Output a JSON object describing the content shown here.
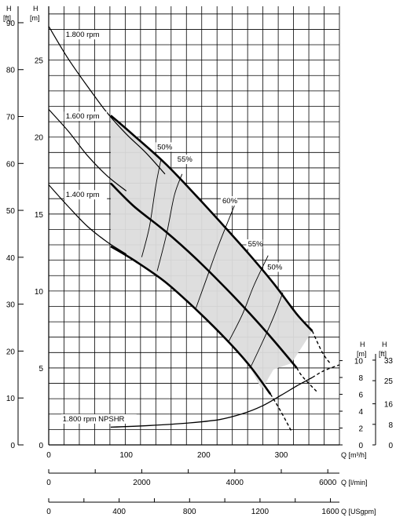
{
  "chart_data": {
    "type": "line",
    "grid": true,
    "units": {
      "h_ft_left": {
        "symbol": "H",
        "unit": "[ft]"
      },
      "h_m_left": {
        "symbol": "H",
        "unit": "[m]"
      },
      "npshr_m": {
        "symbol": "H",
        "unit": "[m]"
      },
      "npshr_ft": {
        "symbol": "H",
        "unit": "[ft]"
      },
      "q_m3h": "Q [m³/h]",
      "q_lmin": "Q [l/min]",
      "q_usgpm": "Q [USgpm]"
    },
    "ticks": {
      "h_ft_left": [
        "0",
        "10",
        "20",
        "30",
        "40",
        "50",
        "60",
        "70",
        "80",
        "90"
      ],
      "h_m_left": [
        "0",
        "5",
        "10",
        "15",
        "20",
        "25"
      ],
      "npshr_m": [
        "0",
        "2",
        "4",
        "6",
        "8",
        "10"
      ],
      "npshr_ft": [
        "0",
        "8",
        "16",
        "25",
        "33"
      ],
      "q_m3h": [
        "0",
        "100",
        "200",
        "300"
      ],
      "q_lmin": [
        "0",
        "2000",
        "4000",
        "6000"
      ],
      "q_usgpm": [
        "0",
        "400",
        "800",
        "1200",
        "1600"
      ]
    },
    "xlim": [
      0,
      375
    ],
    "ylim_m": [
      0,
      28.5
    ],
    "npshr_ylim_m": [
      0,
      10.8
    ],
    "series": [
      {
        "name": "1.800 rpm",
        "style": "thin",
        "points": [
          [
            0,
            27.2
          ],
          [
            25,
            25.1
          ],
          [
            50,
            23.3
          ],
          [
            75,
            21.6
          ],
          [
            100,
            20.2
          ],
          [
            125,
            19.0
          ],
          [
            150,
            17.6
          ]
        ]
      },
      {
        "name": "1.800 rpm",
        "style": "thick",
        "points": [
          [
            80,
            21.4
          ],
          [
            110,
            20.1
          ],
          [
            150,
            18.3
          ],
          [
            190,
            16.2
          ],
          [
            230,
            14.0
          ],
          [
            260,
            12.3
          ],
          [
            290,
            10.5
          ],
          [
            320,
            8.5
          ],
          [
            340,
            7.4
          ]
        ]
      },
      {
        "name": "1.800 rpm",
        "style": "dashed",
        "points": [
          [
            340,
            7.4
          ],
          [
            353,
            6.0
          ],
          [
            363,
            5.3
          ]
        ]
      },
      {
        "name": "1.600 rpm",
        "style": "thin",
        "points": [
          [
            0,
            21.8
          ],
          [
            25,
            20.4
          ],
          [
            50,
            18.8
          ],
          [
            75,
            17.5
          ],
          [
            100,
            16.5
          ]
        ]
      },
      {
        "name": "1.600 rpm",
        "style": "thick",
        "points": [
          [
            80,
            17.0
          ],
          [
            110,
            15.5
          ],
          [
            150,
            13.9
          ],
          [
            190,
            12.1
          ],
          [
            230,
            10.1
          ],
          [
            260,
            8.5
          ],
          [
            290,
            6.8
          ],
          [
            320,
            5.0
          ]
        ]
      },
      {
        "name": "1.600 rpm",
        "style": "dashed",
        "points": [
          [
            320,
            5.0
          ],
          [
            328,
            4.4
          ],
          [
            347,
            3.4
          ]
        ]
      },
      {
        "name": "1.400 rpm",
        "style": "thin",
        "points": [
          [
            0,
            16.9
          ],
          [
            25,
            15.5
          ],
          [
            50,
            14.2
          ],
          [
            75,
            13.2
          ],
          [
            100,
            12.4
          ]
        ]
      },
      {
        "name": "1.400 rpm",
        "style": "thick",
        "points": [
          [
            80,
            12.9
          ],
          [
            110,
            12.0
          ],
          [
            150,
            10.6
          ],
          [
            190,
            8.8
          ],
          [
            230,
            6.8
          ],
          [
            260,
            5.1
          ],
          [
            286,
            3.3
          ]
        ]
      },
      {
        "name": "1.400 rpm",
        "style": "dashed",
        "points": [
          [
            286,
            3.3
          ],
          [
            298,
            2.3
          ],
          [
            313,
            0.9
          ]
        ]
      }
    ],
    "npshr": {
      "label": "1.800 rpm NPSHR",
      "points": [
        [
          80,
          2.1
        ],
        [
          130,
          2.3
        ],
        [
          180,
          2.6
        ],
        [
          220,
          3.0
        ],
        [
          250,
          3.7
        ],
        [
          275,
          4.6
        ],
        [
          300,
          5.9
        ],
        [
          320,
          7.0
        ],
        [
          340,
          8.0
        ]
      ],
      "dashed_points": [
        [
          340,
          8.0
        ],
        [
          355,
          8.8
        ],
        [
          375,
          9.5
        ]
      ]
    },
    "efficiency_lines": [
      {
        "label": "50%",
        "points": [
          [
            120,
            12.2
          ],
          [
            130,
            14.2
          ],
          [
            138,
            16.8
          ],
          [
            145,
            18.6
          ]
        ]
      },
      {
        "label": "55%",
        "points": [
          [
            140,
            11.3
          ],
          [
            152,
            13.7
          ],
          [
            162,
            16.2
          ],
          [
            172,
            17.6
          ]
        ]
      },
      {
        "label": "60%",
        "points": [
          [
            190,
            8.9
          ],
          [
            205,
            11.0
          ],
          [
            220,
            13.1
          ],
          [
            240,
            15.6
          ]
        ]
      },
      {
        "label": "55%",
        "points": [
          [
            232,
            6.7
          ],
          [
            250,
            8.5
          ],
          [
            265,
            10.4
          ],
          [
            283,
            12.3
          ]
        ]
      },
      {
        "label": "50%",
        "points": [
          [
            260,
            5.0
          ],
          [
            275,
            6.6
          ],
          [
            290,
            8.3
          ],
          [
            302,
            9.9
          ]
        ]
      }
    ],
    "operating_region": [
      [
        80,
        21.4
      ],
      [
        110,
        20.1
      ],
      [
        150,
        18.3
      ],
      [
        190,
        16.2
      ],
      [
        230,
        14.0
      ],
      [
        260,
        12.3
      ],
      [
        290,
        10.5
      ],
      [
        320,
        8.5
      ],
      [
        340,
        7.4
      ],
      [
        313,
        5.3
      ],
      [
        290,
        4.9
      ],
      [
        275,
        3.6
      ],
      [
        260,
        5.0
      ],
      [
        230,
        6.8
      ],
      [
        190,
        8.8
      ],
      [
        150,
        10.6
      ],
      [
        110,
        12.0
      ],
      [
        80,
        12.9
      ]
    ],
    "curve_labels": [
      {
        "text": "1.800 rpm",
        "at": [
          22,
          26.5
        ]
      },
      {
        "text": "1.600 rpm",
        "at": [
          22,
          21.2
        ]
      },
      {
        "text": "1.400 rpm",
        "at": [
          22,
          16.1
        ]
      },
      {
        "text": "50%",
        "at": [
          140,
          19.2
        ]
      },
      {
        "text": "55%",
        "at": [
          166,
          18.4
        ]
      },
      {
        "text": "60%",
        "at": [
          224,
          15.7
        ]
      },
      {
        "text": "55%",
        "at": [
          257,
          12.9
        ]
      },
      {
        "text": "50%",
        "at": [
          282,
          11.4
        ]
      }
    ]
  }
}
